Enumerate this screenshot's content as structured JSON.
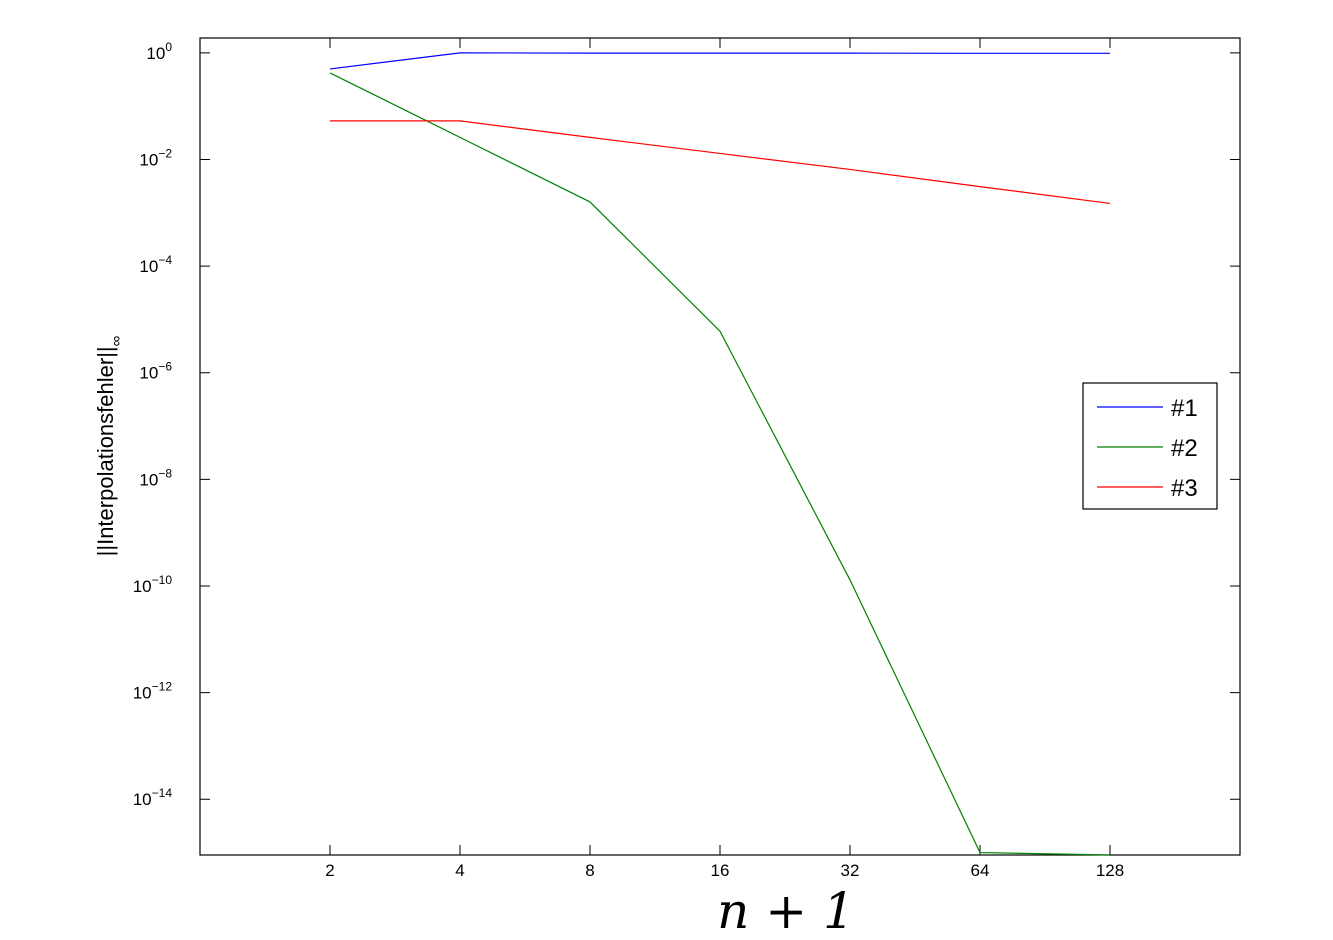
{
  "chart_data": {
    "type": "line",
    "title": "",
    "xlabel": "n + 1",
    "ylabel": "||Interpolationsfehler||",
    "ylabel_subscript": "∞",
    "xscale": "log2",
    "yscale": "log10",
    "xlim": [
      1,
      256
    ],
    "ylim": [
      9e-16,
      1.9
    ],
    "x": [
      2,
      4,
      8,
      16,
      32,
      64,
      128
    ],
    "xticks": [
      2,
      4,
      8,
      16,
      32,
      64,
      128
    ],
    "xtick_labels": [
      "2",
      "4",
      "8",
      "16",
      "32",
      "64",
      "128"
    ],
    "yticks": [
      0,
      -2,
      -4,
      -6,
      -8,
      -10,
      -12,
      -14
    ],
    "ytick_labels": [
      {
        "base": "10",
        "exp": "0"
      },
      {
        "base": "10",
        "exp": "−2"
      },
      {
        "base": "10",
        "exp": "−4"
      },
      {
        "base": "10",
        "exp": "−6"
      },
      {
        "base": "10",
        "exp": "−8"
      },
      {
        "base": "10",
        "exp": "−10"
      },
      {
        "base": "10",
        "exp": "−12"
      },
      {
        "base": "10",
        "exp": "−14"
      }
    ],
    "grid": false,
    "legend_position": "right",
    "series": [
      {
        "name": "#1",
        "color": "#0000ff",
        "values": [
          0.5,
          1.0,
          0.99,
          0.99,
          0.99,
          0.98,
          0.98
        ]
      },
      {
        "name": "#2",
        "color": "#008000",
        "values": [
          0.42,
          0.026,
          0.0016,
          6e-06,
          1.3e-10,
          1e-15,
          8.5e-16
        ]
      },
      {
        "name": "#3",
        "color": "#ff0000",
        "values": [
          0.053,
          0.053,
          0.026,
          0.013,
          0.0065,
          0.0031,
          0.0015
        ]
      }
    ]
  }
}
